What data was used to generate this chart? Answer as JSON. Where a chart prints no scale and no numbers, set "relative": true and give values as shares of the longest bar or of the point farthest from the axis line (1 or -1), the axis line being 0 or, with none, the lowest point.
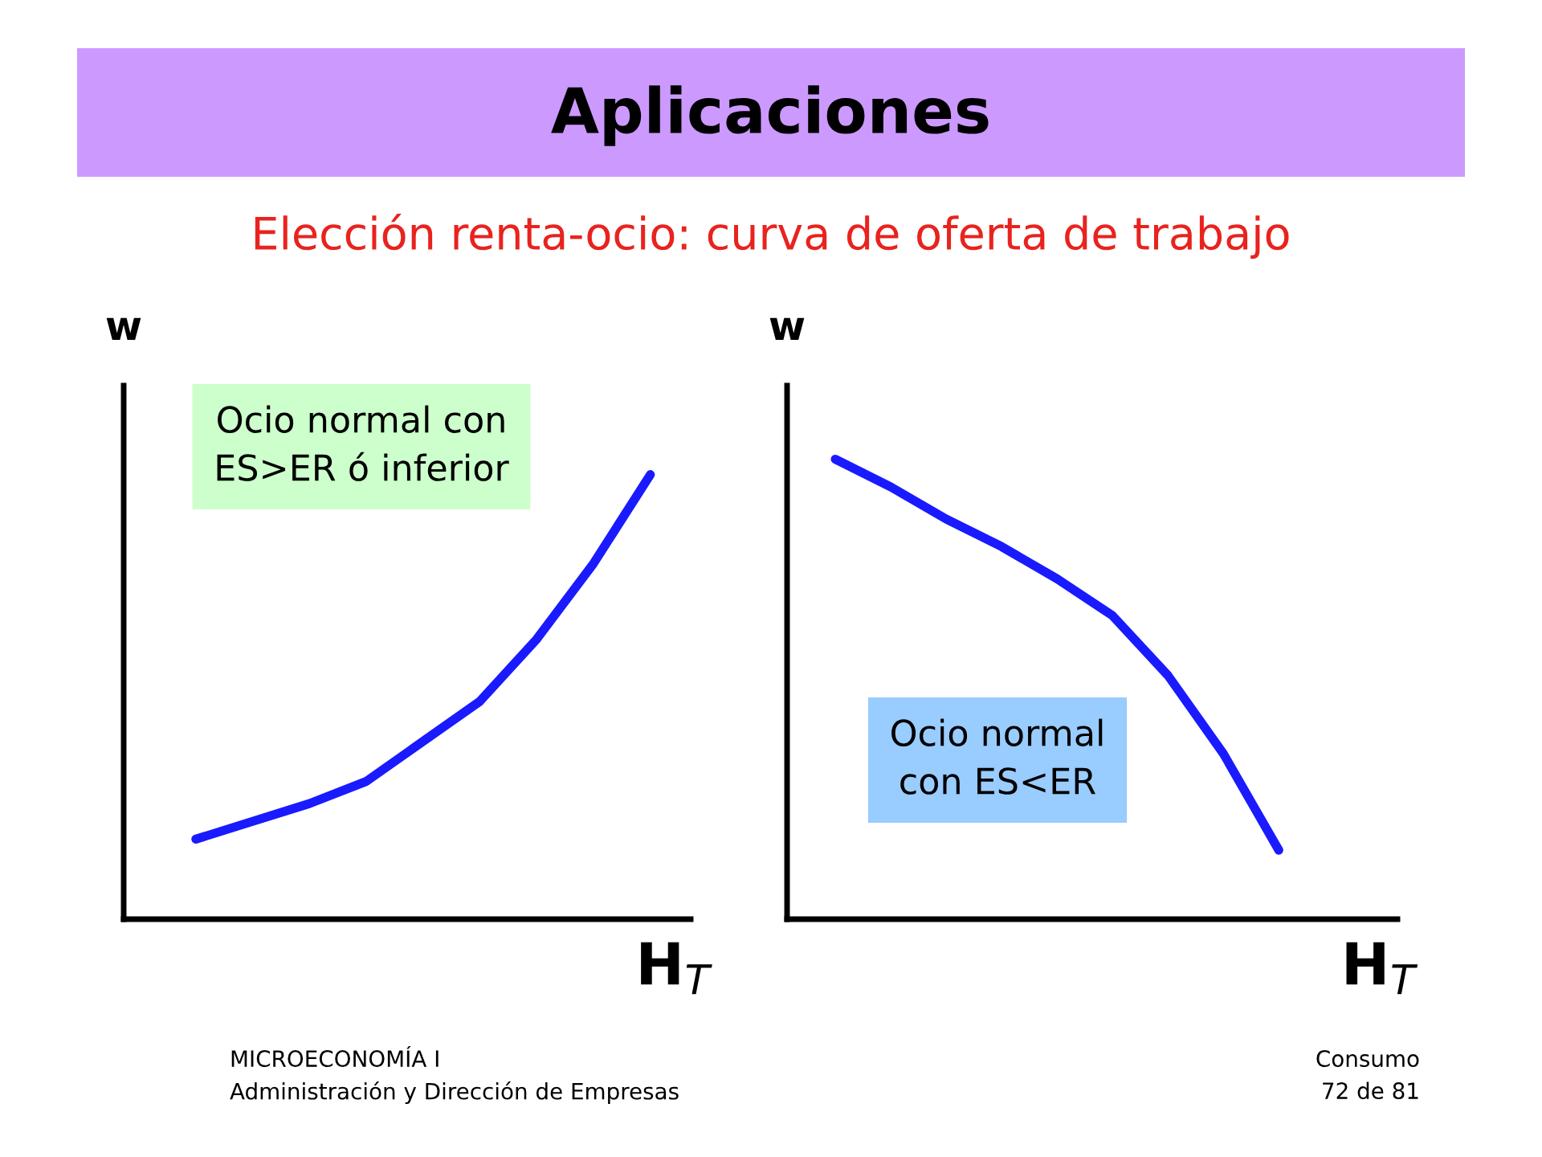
{
  "chart_data": [
    {
      "type": "line",
      "title": "Aplicaciones",
      "subtitle": "Elección renta-ocio: curva de oferta de trabajo",
      "xlabel": "H$_{T}$",
      "ylabel": "w",
      "relative": true,
      "categories": [
        null,
        null,
        null,
        null,
        null,
        null,
        null,
        null,
        null
      ],
      "series": [
        {
          "color": "#1a1aff",
          "values": [
            0.18,
            0.22,
            0.26,
            0.31,
            0.4,
            0.49,
            0.63,
            0.8,
            1.0
          ]
        }
      ],
      "annotations": [
        "Ocio normal con\nES>ER ó inferior",
        "MICROECONOMÍA I",
        "Administración y Dirección de Empresas"
      ]
    },
    {
      "type": "line",
      "xlabel": "H$_{T}$",
      "ylabel": "w",
      "relative": true,
      "categories": [
        null,
        null,
        null,
        null,
        null,
        null,
        null,
        null,
        null
      ],
      "series": [
        {
          "color": "#1a1aff",
          "values": [
            1.0,
            0.94,
            0.87,
            0.81,
            0.74,
            0.66,
            0.53,
            0.36,
            0.15
          ]
        }
      ],
      "annotations": [
        "Ocio normal\ncon ES<ER",
        "Consumo",
        "72 de 81"
      ]
    }
  ]
}
